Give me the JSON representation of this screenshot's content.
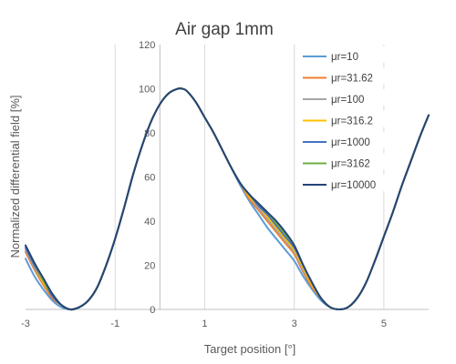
{
  "chart_data": {
    "type": "line",
    "title": "Air gap 1mm",
    "xlabel": "Target position [°]",
    "ylabel": "Normalized differential field [%]",
    "xlim": [
      -3,
      6
    ],
    "ylim": [
      0,
      120
    ],
    "xticks": [
      -3,
      -1,
      1,
      3,
      5
    ],
    "xtick_labels": [
      "-3",
      "-1",
      "1",
      "3",
      "5"
    ],
    "yticks": [
      0,
      20,
      40,
      60,
      80,
      100,
      120
    ],
    "ytick_labels": [
      "0",
      "20",
      "40",
      "60",
      "80",
      "100",
      "120"
    ],
    "grid": "vertical",
    "legend_position": "top-right",
    "series": [
      {
        "name": "μr=10",
        "color": "#5B9BD5",
        "x": [
          -3,
          -2.8,
          -2.6,
          -2.4,
          -2.2,
          -2.0,
          -1.8,
          -1.6,
          -1.4,
          -1.2,
          -1.0,
          -0.8,
          -0.6,
          -0.4,
          -0.2,
          0.0,
          0.2,
          0.4,
          0.5,
          0.6,
          0.8,
          1.0,
          1.2,
          1.4,
          1.6,
          1.8,
          2.0,
          2.2,
          2.4,
          2.6,
          2.8,
          3.0,
          3.2,
          3.4,
          3.6,
          3.8,
          4.0,
          4.2,
          4.4,
          4.6,
          4.8,
          5.0,
          5.2,
          5.4,
          5.6,
          5.8,
          6.0
        ],
        "y": [
          23,
          15,
          9,
          4,
          1,
          0,
          1,
          4,
          10,
          20,
          32,
          46,
          61,
          74,
          85,
          93,
          98,
          100,
          100,
          99,
          94,
          87,
          80,
          72,
          64,
          56,
          49,
          43,
          37,
          32,
          27,
          22,
          15,
          9,
          4,
          1,
          0,
          1,
          5,
          12,
          22,
          33,
          44,
          56,
          67,
          78,
          88
        ]
      },
      {
        "name": "μr=31.62",
        "color": "#ED7D31",
        "x": [
          -3,
          -2.8,
          -2.6,
          -2.4,
          -2.2,
          -2.0,
          -1.8,
          -1.6,
          -1.4,
          -1.2,
          -1.0,
          -0.8,
          -0.6,
          -0.4,
          -0.2,
          0.0,
          0.2,
          0.4,
          0.5,
          0.6,
          0.8,
          1.0,
          1.2,
          1.4,
          1.6,
          1.8,
          2.0,
          2.2,
          2.4,
          2.6,
          2.8,
          3.0,
          3.2,
          3.4,
          3.6,
          3.8,
          4.0,
          4.2,
          4.4,
          4.6,
          4.8,
          5.0,
          5.2,
          5.4,
          5.6,
          5.8,
          6.0
        ],
        "y": [
          26,
          18,
          11,
          5,
          2,
          0,
          1,
          4,
          10,
          20,
          32,
          46,
          61,
          74,
          85,
          93,
          98,
          100,
          100,
          99,
          94,
          87,
          80,
          72,
          64,
          57,
          50,
          45,
          40,
          35,
          30,
          25,
          17,
          10,
          5,
          1,
          0,
          1,
          5,
          12,
          22,
          33,
          44,
          56,
          67,
          78,
          88
        ]
      },
      {
        "name": "μr=100",
        "color": "#A5A5A5",
        "x": [
          -3,
          -2.8,
          -2.6,
          -2.4,
          -2.2,
          -2.0,
          -1.8,
          -1.6,
          -1.4,
          -1.2,
          -1.0,
          -0.8,
          -0.6,
          -0.4,
          -0.2,
          0.0,
          0.2,
          0.4,
          0.5,
          0.6,
          0.8,
          1.0,
          1.2,
          1.4,
          1.6,
          1.8,
          2.0,
          2.2,
          2.4,
          2.6,
          2.8,
          3.0,
          3.2,
          3.4,
          3.6,
          3.8,
          4.0,
          4.2,
          4.4,
          4.6,
          4.8,
          5.0,
          5.2,
          5.4,
          5.6,
          5.8,
          6.0
        ],
        "y": [
          27,
          19,
          12,
          6,
          2,
          0,
          1,
          4,
          10,
          20,
          32,
          46,
          61,
          74,
          85,
          93,
          98,
          100,
          100,
          99,
          94,
          87,
          80,
          72,
          64,
          57,
          51,
          46,
          41,
          36,
          31,
          26,
          18,
          11,
          5,
          1,
          0,
          1,
          5,
          12,
          22,
          33,
          44,
          56,
          67,
          78,
          88
        ]
      },
      {
        "name": "μr=316.2",
        "color": "#FFC000",
        "x": [
          -3,
          -2.8,
          -2.6,
          -2.4,
          -2.2,
          -2.0,
          -1.8,
          -1.6,
          -1.4,
          -1.2,
          -1.0,
          -0.8,
          -0.6,
          -0.4,
          -0.2,
          0.0,
          0.2,
          0.4,
          0.5,
          0.6,
          0.8,
          1.0,
          1.2,
          1.4,
          1.6,
          1.8,
          2.0,
          2.2,
          2.4,
          2.6,
          2.8,
          3.0,
          3.2,
          3.4,
          3.6,
          3.8,
          4.0,
          4.2,
          4.4,
          4.6,
          4.8,
          5.0,
          5.2,
          5.4,
          5.6,
          5.8,
          6.0
        ],
        "y": [
          28,
          20,
          12,
          6,
          2,
          0,
          1,
          4,
          10,
          20,
          32,
          46,
          61,
          74,
          85,
          93,
          98,
          100,
          100,
          99,
          94,
          87,
          80,
          72,
          64,
          57,
          51,
          47,
          42,
          37,
          32,
          27,
          19,
          11,
          5,
          1,
          0,
          1,
          5,
          12,
          22,
          33,
          44,
          56,
          67,
          78,
          88
        ]
      },
      {
        "name": "μr=1000",
        "color": "#4472C4",
        "x": [
          -3,
          -2.8,
          -2.6,
          -2.4,
          -2.2,
          -2.0,
          -1.8,
          -1.6,
          -1.4,
          -1.2,
          -1.0,
          -0.8,
          -0.6,
          -0.4,
          -0.2,
          0.0,
          0.2,
          0.4,
          0.5,
          0.6,
          0.8,
          1.0,
          1.2,
          1.4,
          1.6,
          1.8,
          2.0,
          2.2,
          2.4,
          2.6,
          2.8,
          3.0,
          3.2,
          3.4,
          3.6,
          3.8,
          4.0,
          4.2,
          4.4,
          4.6,
          4.8,
          5.0,
          5.2,
          5.4,
          5.6,
          5.8,
          6.0
        ],
        "y": [
          28,
          20,
          13,
          6,
          2,
          0,
          1,
          4,
          10,
          20,
          32,
          46,
          61,
          74,
          85,
          93,
          98,
          100,
          100,
          99,
          94,
          87,
          80,
          72,
          64,
          57,
          52,
          47,
          43,
          38,
          33,
          28,
          20,
          12,
          5,
          1,
          0,
          1,
          5,
          12,
          22,
          33,
          44,
          56,
          67,
          78,
          88
        ]
      },
      {
        "name": "μr=3162",
        "color": "#70AD47",
        "x": [
          -3,
          -2.8,
          -2.6,
          -2.4,
          -2.2,
          -2.0,
          -1.8,
          -1.6,
          -1.4,
          -1.2,
          -1.0,
          -0.8,
          -0.6,
          -0.4,
          -0.2,
          0.0,
          0.2,
          0.4,
          0.5,
          0.6,
          0.8,
          1.0,
          1.2,
          1.4,
          1.6,
          1.8,
          2.0,
          2.2,
          2.4,
          2.6,
          2.8,
          3.0,
          3.2,
          3.4,
          3.6,
          3.8,
          4.0,
          4.2,
          4.4,
          4.6,
          4.8,
          5.0,
          5.2,
          5.4,
          5.6,
          5.8,
          6.0
        ],
        "y": [
          29,
          21,
          13,
          7,
          2,
          0,
          1,
          4,
          10,
          20,
          32,
          46,
          61,
          74,
          85,
          93,
          98,
          100,
          100,
          99,
          94,
          87,
          80,
          72,
          64,
          57,
          52,
          48,
          44,
          39,
          34,
          29,
          20,
          12,
          5,
          1,
          0,
          1,
          5,
          12,
          22,
          33,
          44,
          56,
          67,
          78,
          88
        ]
      },
      {
        "name": "μr=10000",
        "color": "#264478",
        "x": [
          -3,
          -2.8,
          -2.6,
          -2.4,
          -2.2,
          -2.0,
          -1.8,
          -1.6,
          -1.4,
          -1.2,
          -1.0,
          -0.8,
          -0.6,
          -0.4,
          -0.2,
          0.0,
          0.2,
          0.4,
          0.5,
          0.6,
          0.8,
          1.0,
          1.2,
          1.4,
          1.6,
          1.8,
          2.0,
          2.2,
          2.4,
          2.6,
          2.8,
          3.0,
          3.2,
          3.4,
          3.6,
          3.8,
          4.0,
          4.2,
          4.4,
          4.6,
          4.8,
          5.0,
          5.2,
          5.4,
          5.6,
          5.8,
          6.0
        ],
        "y": [
          29,
          21,
          14,
          7,
          2,
          0,
          1,
          4,
          10,
          20,
          32,
          46,
          61,
          74,
          85,
          93,
          98,
          100,
          100,
          99,
          94,
          87,
          80,
          72,
          64,
          57,
          52,
          48,
          44,
          40,
          35,
          29,
          20,
          12,
          5,
          1,
          0,
          1,
          5,
          12,
          22,
          33,
          44,
          56,
          67,
          78,
          88
        ]
      }
    ]
  }
}
